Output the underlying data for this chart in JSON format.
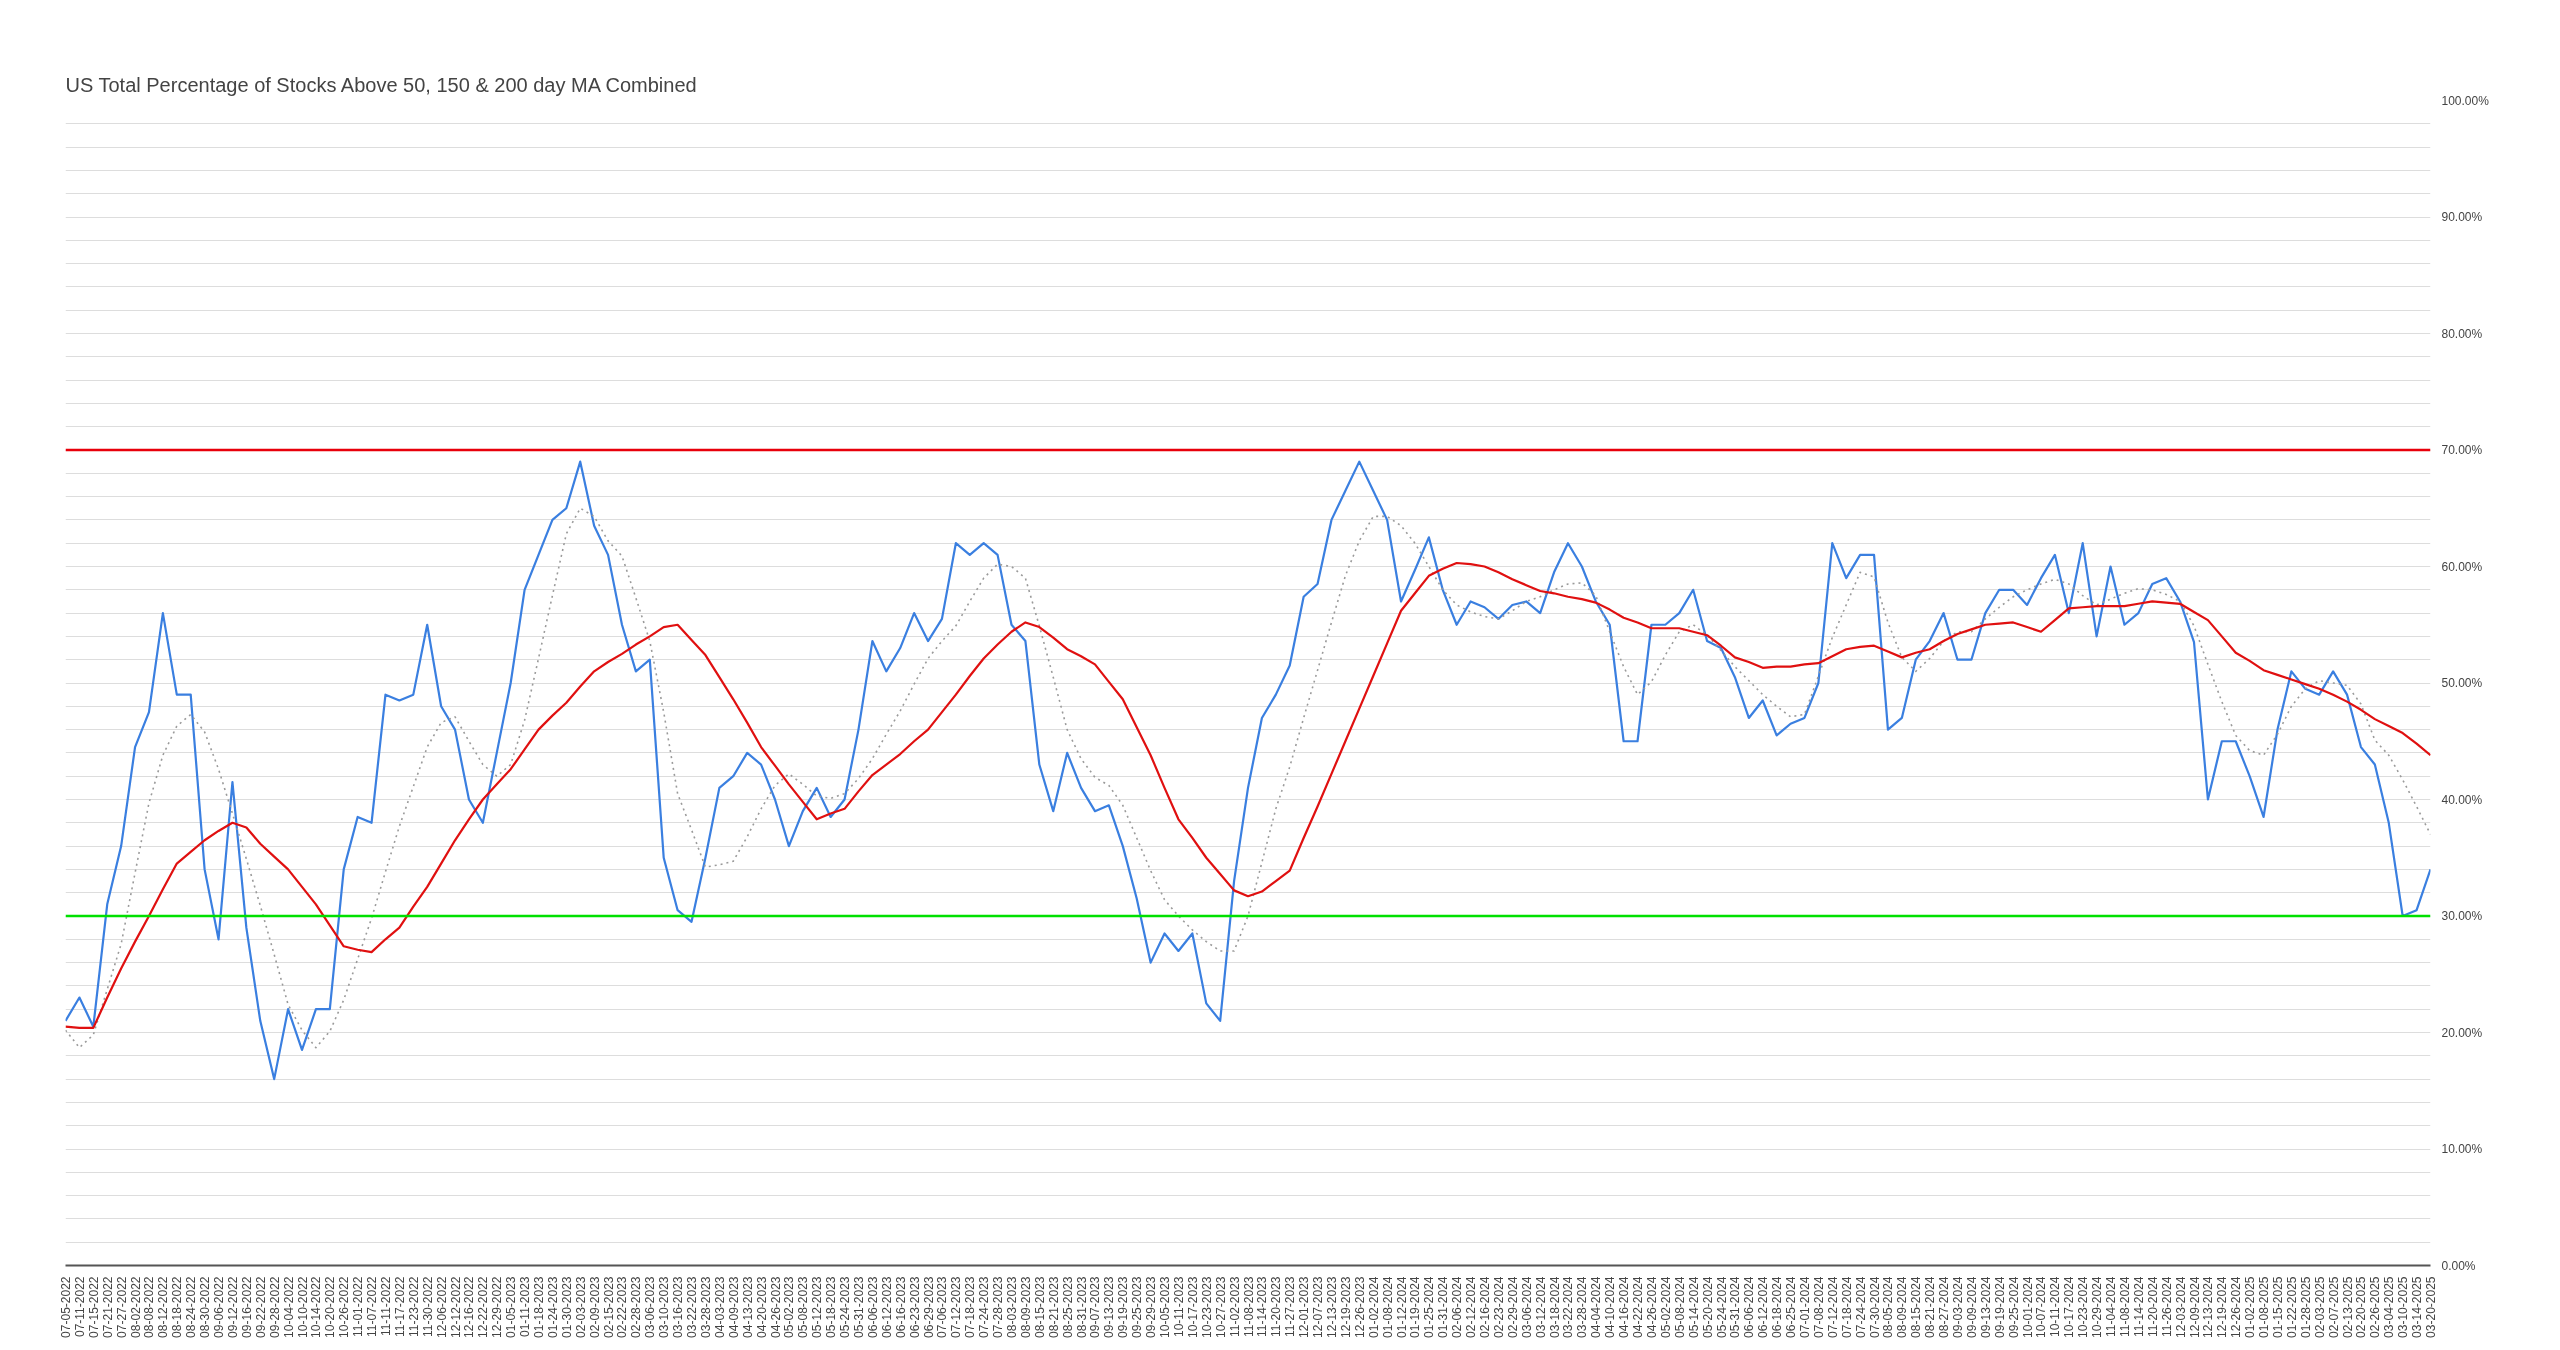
{
  "chart_data": {
    "type": "line",
    "title": "US Total Percentage of Stocks Above 50, 150 & 200 day MA Combined",
    "categories": [
      "07-05-2022",
      "07-11-2022",
      "07-15-2022",
      "07-21-2022",
      "07-27-2022",
      "08-02-2022",
      "08-08-2022",
      "08-12-2022",
      "08-18-2022",
      "08-24-2022",
      "08-30-2022",
      "09-06-2022",
      "09-12-2022",
      "09-16-2022",
      "09-22-2022",
      "09-28-2022",
      "10-04-2022",
      "10-10-2022",
      "10-14-2022",
      "10-20-2022",
      "10-26-2022",
      "11-01-2022",
      "11-07-2022",
      "11-11-2022",
      "11-17-2022",
      "11-23-2022",
      "11-30-2022",
      "12-06-2022",
      "12-12-2022",
      "12-16-2022",
      "12-22-2022",
      "12-29-2022",
      "01-05-2023",
      "01-11-2023",
      "01-18-2023",
      "01-24-2023",
      "01-30-2023",
      "02-03-2023",
      "02-09-2023",
      "02-15-2023",
      "02-22-2023",
      "02-28-2023",
      "03-06-2023",
      "03-10-2023",
      "03-16-2023",
      "03-22-2023",
      "03-28-2023",
      "04-03-2023",
      "04-09-2023",
      "04-13-2023",
      "04-20-2023",
      "04-26-2023",
      "05-02-2023",
      "05-08-2023",
      "05-12-2023",
      "05-18-2023",
      "05-24-2023",
      "05-31-2023",
      "06-06-2023",
      "06-12-2023",
      "06-16-2023",
      "06-23-2023",
      "06-29-2023",
      "07-06-2023",
      "07-12-2023",
      "07-18-2023",
      "07-24-2023",
      "07-28-2023",
      "08-03-2023",
      "08-09-2023",
      "08-15-2023",
      "08-21-2023",
      "08-25-2023",
      "08-31-2023",
      "09-07-2023",
      "09-13-2023",
      "09-19-2023",
      "09-25-2023",
      "09-29-2023",
      "10-05-2023",
      "10-11-2023",
      "10-17-2023",
      "10-23-2023",
      "10-27-2023",
      "11-02-2023",
      "11-08-2023",
      "11-14-2023",
      "11-20-2023",
      "11-27-2023",
      "12-01-2023",
      "12-07-2023",
      "12-13-2023",
      "12-19-2023",
      "12-26-2023",
      "01-02-2024",
      "01-08-2024",
      "01-12-2024",
      "01-19-2024",
      "01-25-2024",
      "01-31-2024",
      "02-06-2024",
      "02-12-2024",
      "02-16-2024",
      "02-23-2024",
      "02-29-2024",
      "03-06-2024",
      "03-12-2024",
      "03-18-2024",
      "03-22-2024",
      "03-28-2024",
      "04-04-2024",
      "04-10-2024",
      "04-16-2024",
      "04-22-2024",
      "04-26-2024",
      "05-02-2024",
      "05-08-2024",
      "05-14-2024",
      "05-20-2024",
      "05-24-2024",
      "05-31-2024",
      "06-06-2024",
      "06-12-2024",
      "06-18-2024",
      "06-25-2024",
      "07-01-2024",
      "07-08-2024",
      "07-12-2024",
      "07-18-2024",
      "07-24-2024",
      "07-30-2024",
      "08-05-2024",
      "08-09-2024",
      "08-15-2024",
      "08-21-2024",
      "08-27-2024",
      "09-03-2024",
      "09-09-2024",
      "09-13-2024",
      "09-19-2024",
      "09-25-2024",
      "10-01-2024",
      "10-07-2024",
      "10-11-2024",
      "10-17-2024",
      "10-23-2024",
      "10-29-2024",
      "11-04-2024",
      "11-08-2024",
      "11-14-2024",
      "11-20-2024",
      "11-26-2024",
      "12-03-2024",
      "12-09-2024",
      "12-13-2024",
      "12-19-2024",
      "12-26-2024",
      "01-02-2025",
      "01-08-2025",
      "01-15-2025",
      "01-22-2025",
      "01-28-2025",
      "02-03-2025",
      "02-07-2025",
      "02-13-2025",
      "02-20-2025",
      "02-26-2025",
      "03-04-2025",
      "03-10-2025",
      "03-14-2025",
      "03-20-2025"
    ],
    "ylim": [
      0,
      100
    ],
    "yticks": [
      {
        "value": 0,
        "label": "0.00%"
      },
      {
        "value": 2,
        "label": null
      },
      {
        "value": 4,
        "label": null
      },
      {
        "value": 6,
        "label": null
      },
      {
        "value": 8,
        "label": null
      },
      {
        "value": 10,
        "label": "10.00%"
      },
      {
        "value": 12,
        "label": null
      },
      {
        "value": 14,
        "label": null
      },
      {
        "value": 16,
        "label": null
      },
      {
        "value": 18,
        "label": null
      },
      {
        "value": 20,
        "label": "20.00%"
      },
      {
        "value": 22,
        "label": null
      },
      {
        "value": 24,
        "label": null
      },
      {
        "value": 26,
        "label": null
      },
      {
        "value": 28,
        "label": null
      },
      {
        "value": 30,
        "label": "30.00%"
      },
      {
        "value": 32,
        "label": null
      },
      {
        "value": 34,
        "label": null
      },
      {
        "value": 36,
        "label": null
      },
      {
        "value": 38,
        "label": null
      },
      {
        "value": 40,
        "label": "40.00%"
      },
      {
        "value": 42,
        "label": null
      },
      {
        "value": 44,
        "label": null
      },
      {
        "value": 46,
        "label": null
      },
      {
        "value": 48,
        "label": null
      },
      {
        "value": 50,
        "label": "50.00%"
      },
      {
        "value": 52,
        "label": null
      },
      {
        "value": 54,
        "label": null
      },
      {
        "value": 56,
        "label": null
      },
      {
        "value": 58,
        "label": null
      },
      {
        "value": 60,
        "label": "60.00%"
      },
      {
        "value": 62,
        "label": null
      },
      {
        "value": 64,
        "label": null
      },
      {
        "value": 66,
        "label": null
      },
      {
        "value": 68,
        "label": null
      },
      {
        "value": 70,
        "label": "70.00%"
      },
      {
        "value": 72,
        "label": null
      },
      {
        "value": 74,
        "label": null
      },
      {
        "value": 76,
        "label": null
      },
      {
        "value": 78,
        "label": null
      },
      {
        "value": 80,
        "label": "80.00%"
      },
      {
        "value": 82,
        "label": null
      },
      {
        "value": 84,
        "label": null
      },
      {
        "value": 86,
        "label": null
      },
      {
        "value": 88,
        "label": null
      },
      {
        "value": 90,
        "label": "90.00%"
      },
      {
        "value": 92,
        "label": null
      },
      {
        "value": 94,
        "label": null
      },
      {
        "value": 96,
        "label": null
      },
      {
        "value": 98,
        "label": null
      },
      {
        "value": 100,
        "label": "100.00%"
      }
    ],
    "grid": "y",
    "series": [
      {
        "color": "#3a7fe0",
        "line_style": "solid",
        "values": [
          21,
          23,
          20.5,
          31,
          36,
          44.5,
          47.5,
          56,
          49,
          49,
          34,
          28,
          41.5,
          29,
          21,
          16,
          22,
          18.5,
          22,
          22,
          34,
          38.5,
          38,
          49,
          48.5,
          49,
          55,
          48,
          46,
          40,
          38,
          44,
          50,
          58,
          61,
          64,
          65,
          69,
          63.5,
          61,
          55,
          51,
          52,
          35,
          30.5,
          29.5,
          35,
          41,
          42,
          44,
          43,
          40,
          36,
          39,
          41,
          38.5,
          40,
          46,
          53.6,
          51,
          53,
          56,
          53.6,
          55.5,
          62,
          61,
          62,
          61,
          55,
          53.6,
          43,
          39,
          44,
          41,
          39,
          39.5,
          36,
          31.5,
          26,
          28.5,
          27,
          28.5,
          22.5,
          21,
          33,
          41,
          47,
          49,
          51.5,
          57.4,
          58.5,
          64,
          66.5,
          69,
          66.5,
          64,
          57,
          59.7,
          62.5,
          58,
          55,
          57,
          56.5,
          55.5,
          56.7,
          57,
          56,
          59.5,
          62,
          60,
          57,
          55,
          45,
          45,
          55,
          55,
          56,
          58,
          53.6,
          53,
          50.5,
          47,
          48.5,
          45.5,
          46.5,
          47,
          50,
          62,
          59,
          61,
          61,
          46,
          47,
          52,
          53.6,
          56,
          52,
          52,
          56,
          58,
          58,
          56.7,
          59,
          61,
          56,
          62,
          54,
          60,
          55,
          56,
          58.5,
          59,
          57,
          53.5,
          40,
          45,
          45,
          42,
          38.5,
          46,
          51,
          49.5,
          49,
          51,
          49,
          44.5,
          43,
          38,
          30,
          30.5,
          34
        ]
      },
      {
        "color": "#9a9a9a",
        "line_style": "dotted",
        "values": [
          20.2,
          18.7,
          19.8,
          23.7,
          27.6,
          33.7,
          39.7,
          43.8,
          46.3,
          47.3,
          45.8,
          42.6,
          38.8,
          34.9,
          30.9,
          26.7,
          22.4,
          20.2,
          18.7,
          20.1,
          22.8,
          26.3,
          29.8,
          33.8,
          37.7,
          41.1,
          44.5,
          46.6,
          47.1,
          45,
          43,
          42,
          43,
          46.8,
          52.1,
          57.5,
          62.8,
          65,
          64.3,
          62.2,
          60.9,
          57.3,
          53.6,
          47.5,
          40.5,
          37.4,
          34.2,
          34.4,
          34.7,
          36.8,
          39.2,
          41.2,
          42.2,
          41.3,
          40.3,
          40.1,
          40.5,
          41.8,
          43.5,
          45.6,
          47.6,
          49.9,
          52.1,
          53.6,
          54.9,
          57,
          59,
          60.2,
          60,
          59,
          54.9,
          50.5,
          46,
          43.5,
          41.9,
          41.2,
          39.5,
          36.7,
          33.9,
          31.4,
          30,
          28.8,
          27.8,
          27,
          27,
          30,
          34.6,
          39.2,
          42.8,
          47,
          51.1,
          55.2,
          59.2,
          62.2,
          64.3,
          64.3,
          63.5,
          62,
          60,
          58,
          56.7,
          56.1,
          55.7,
          55.5,
          56.2,
          57,
          57.4,
          58,
          58.5,
          58.6,
          57.5,
          54.4,
          51.4,
          49,
          50.1,
          52.4,
          54.4,
          55,
          54.1,
          52.8,
          51.4,
          50.2,
          49,
          48,
          47.1,
          47.3,
          50.6,
          53.9,
          56.7,
          59.5,
          59.1,
          55.2,
          52.2,
          51,
          52.1,
          53.6,
          54.4,
          54.4,
          55.5,
          56.5,
          57.4,
          58,
          58.5,
          58.9,
          58.5,
          57.5,
          56.7,
          57.2,
          57.7,
          58.1,
          58,
          57.6,
          57,
          54.9,
          51.6,
          48.4,
          45.5,
          44.2,
          43.8,
          45.6,
          48,
          49.5,
          50.2,
          50,
          49.8,
          48.2,
          45.1,
          43.8,
          41.7,
          39.4,
          37
        ]
      },
      {
        "color": "#e01010",
        "line_style": "solid",
        "values": [
          20.5,
          20.4,
          20.4,
          23,
          25.5,
          27.8,
          30,
          32.3,
          34.5,
          35.5,
          36.5,
          37.3,
          38,
          37.6,
          36.2,
          35.1,
          34,
          32.5,
          31,
          29.2,
          27.4,
          27.1,
          26.9,
          28,
          29,
          30.8,
          32.5,
          34.5,
          36.5,
          38.3,
          40,
          41.3,
          42.6,
          44.3,
          46,
          47.2,
          48.3,
          49.7,
          51,
          51.8,
          52.5,
          53.3,
          54,
          54.8,
          55,
          53.7,
          52.4,
          50.5,
          48.6,
          46.6,
          44.5,
          42.9,
          41.3,
          39.8,
          38.3,
          38.8,
          39.2,
          40.7,
          42.1,
          43,
          43.9,
          45,
          46,
          47.5,
          49,
          50.6,
          52.1,
          53.3,
          54.4,
          55.2,
          54.8,
          53.9,
          52.9,
          52.3,
          51.6,
          50.1,
          48.6,
          46.2,
          43.8,
          41,
          38.3,
          36.7,
          35,
          33.6,
          32.2,
          31.7,
          32.1,
          33,
          33.9,
          36.7,
          39.4,
          42.2,
          45,
          47.8,
          50.6,
          53.4,
          56.2,
          57.7,
          59.2,
          59.8,
          60.3,
          60.2,
          60,
          59.5,
          58.9,
          58.4,
          57.9,
          57.7,
          57.4,
          57.2,
          56.9,
          56.3,
          55.6,
          55.2,
          54.7,
          54.7,
          54.7,
          54.4,
          54.1,
          53.2,
          52.2,
          51.8,
          51.3,
          51.4,
          51.4,
          51.6,
          51.7,
          52.3,
          52.9,
          53.1,
          53.2,
          52.7,
          52.2,
          52.6,
          52.9,
          53.6,
          54.2,
          54.6,
          55,
          55.1,
          55.2,
          54.8,
          54.4,
          55.4,
          56.4,
          56.5,
          56.6,
          56.6,
          56.6,
          56.8,
          57,
          56.9,
          56.8,
          56.1,
          55.4,
          54,
          52.6,
          51.9,
          51.1,
          50.7,
          50.3,
          49.9,
          49.5,
          49,
          48.4,
          47.7,
          46.9,
          46.3,
          45.7,
          44.8,
          43.8
        ]
      }
    ],
    "ref_lines": [
      {
        "axis": "y",
        "value": 70,
        "color": "#e8000b"
      },
      {
        "axis": "y",
        "value": 30,
        "color": "#00e000"
      }
    ]
  }
}
